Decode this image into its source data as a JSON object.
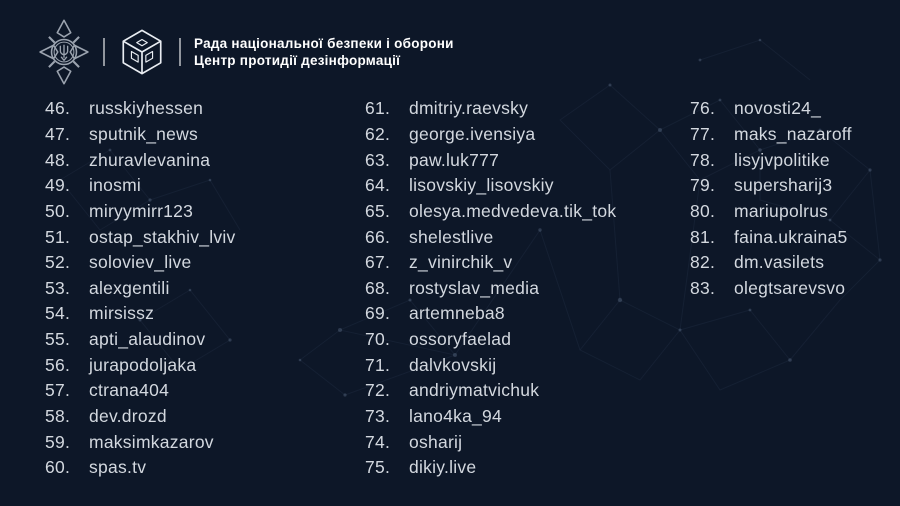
{
  "header": {
    "org_line1": "Рада національної безпеки і оборони",
    "org_line2": "Центр протидії дезінформації"
  },
  "colors": {
    "background": "#0d1728",
    "list_text": "#d3d8df",
    "header_text": "#ffffff",
    "emblem_silver": "#9ba3af",
    "logo_white": "#e9edf2"
  },
  "icons": {
    "emblem": "nsdc-emblem-icon",
    "cube": "cpd-logo-icon"
  },
  "list": {
    "columns": [
      {
        "items": [
          {
            "n": "46.",
            "name": "russkiyhessen"
          },
          {
            "n": "47.",
            "name": "sputnik_news"
          },
          {
            "n": "48.",
            "name": "zhuravlevanina"
          },
          {
            "n": "49.",
            "name": "inosmi"
          },
          {
            "n": "50.",
            "name": "miryymirr123"
          },
          {
            "n": "51.",
            "name": "ostap_stakhiv_lviv"
          },
          {
            "n": "52.",
            "name": "soloviev_live"
          },
          {
            "n": "53.",
            "name": "alexgentili"
          },
          {
            "n": "54.",
            "name": "mirsissz"
          },
          {
            "n": "55.",
            "name": "apti_alaudinov"
          },
          {
            "n": "56.",
            "name": "jurapodoljaka"
          },
          {
            "n": "57.",
            "name": "ctrana404"
          },
          {
            "n": "58.",
            "name": "dev.drozd"
          },
          {
            "n": "59.",
            "name": "maksimkazarov"
          },
          {
            "n": "60.",
            "name": "spas.tv"
          }
        ]
      },
      {
        "items": [
          {
            "n": "61.",
            "name": "dmitriy.raevsky"
          },
          {
            "n": "62.",
            "name": "george.ivensiya"
          },
          {
            "n": "63.",
            "name": "paw.luk777"
          },
          {
            "n": "64.",
            "name": "lisovskiy_lisovskiy"
          },
          {
            "n": "65.",
            "name": "olesya.medvedeva.tik_tok"
          },
          {
            "n": "66.",
            "name": "shelestlive"
          },
          {
            "n": "67.",
            "name": "z_vinirchik_v"
          },
          {
            "n": "68.",
            "name": "rostyslav_media"
          },
          {
            "n": "69.",
            "name": "artemneba8"
          },
          {
            "n": "70.",
            "name": "ossoryfaelad"
          },
          {
            "n": "71.",
            "name": "dalvkovskij"
          },
          {
            "n": "72.",
            "name": "andriymatvichuk"
          },
          {
            "n": "73.",
            "name": "lano4ka_94"
          },
          {
            "n": "74.",
            "name": "osharij"
          },
          {
            "n": "75.",
            "name": "dikiy.live"
          }
        ]
      },
      {
        "items": [
          {
            "n": "76.",
            "name": "novosti24_"
          },
          {
            "n": "77.",
            "name": "maks_nazaroff"
          },
          {
            "n": "78.",
            "name": "lisyjvpolitike"
          },
          {
            "n": "79.",
            "name": "supersharij3"
          },
          {
            "n": "80.",
            "name": "mariupolrus"
          },
          {
            "n": "81.",
            "name": "faina.ukraina5"
          },
          {
            "n": "82.",
            "name": "dm.vasilets"
          },
          {
            "n": "83.",
            "name": "olegtsarevsvo"
          }
        ]
      }
    ]
  }
}
